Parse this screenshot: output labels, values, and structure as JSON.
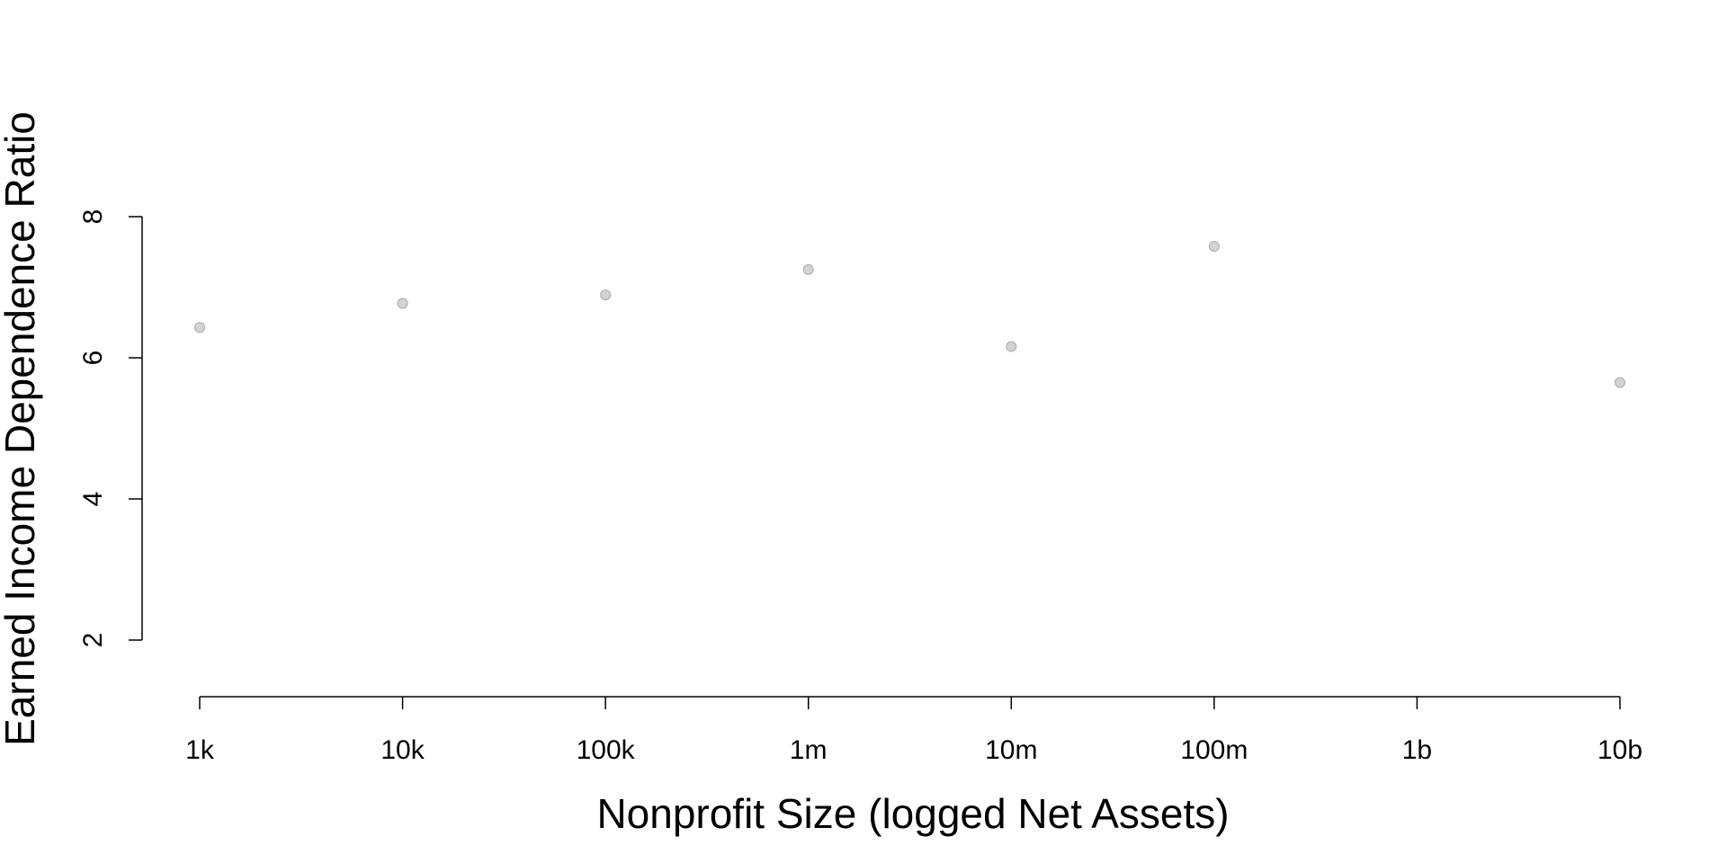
{
  "chart_data": {
    "type": "scatter",
    "title": "",
    "xlabel": "Nonprofit Size (logged Net Assets)",
    "ylabel": "Earned Income Dependence Ratio",
    "x_scale": "log10",
    "x_ticks": [
      {
        "value": 1000,
        "label": "1k"
      },
      {
        "value": 10000,
        "label": "10k"
      },
      {
        "value": 100000,
        "label": "100k"
      },
      {
        "value": 1000000,
        "label": "1m"
      },
      {
        "value": 10000000,
        "label": "10m"
      },
      {
        "value": 100000000,
        "label": "100m"
      },
      {
        "value": 1000000000,
        "label": "1b"
      },
      {
        "value": 10000000000,
        "label": "10b"
      }
    ],
    "y_ticks": [
      2,
      4,
      6,
      8
    ],
    "grid": false,
    "legend": "none",
    "point_color": "#d3d3d3",
    "point_stroke": "#a9a9a9",
    "points": [
      {
        "x": 1000,
        "y": 6.43
      },
      {
        "x": 10000,
        "y": 6.77
      },
      {
        "x": 100000,
        "y": 6.89
      },
      {
        "x": 1000000,
        "y": 7.25
      },
      {
        "x": 10000000,
        "y": 6.16
      },
      {
        "x": 100000000,
        "y": 7.58
      },
      {
        "x": 10000000000,
        "y": 5.65
      }
    ]
  }
}
